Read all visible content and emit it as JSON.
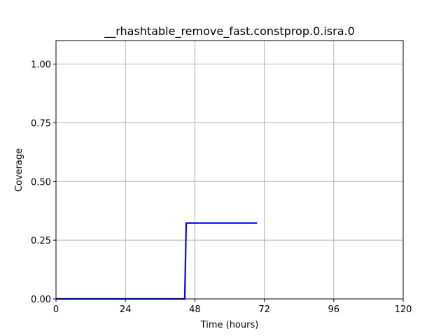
{
  "chart_data": {
    "type": "line",
    "title": "__rhashtable_remove_fast.constprop.0.isra.0",
    "xlabel": "Time (hours)",
    "ylabel": "Coverage",
    "xlim": [
      0,
      120
    ],
    "ylim": [
      0,
      1.1
    ],
    "xticks": [
      0,
      24,
      48,
      72,
      96,
      120
    ],
    "xtick_labels": [
      "0",
      "24",
      "48",
      "72",
      "96",
      "120"
    ],
    "yticks": [
      0,
      0.25,
      0.5,
      0.75,
      1.0
    ],
    "ytick_labels": [
      "0.00",
      "0.25",
      "0.50",
      "0.75",
      "1.00"
    ],
    "grid": true,
    "series": [
      {
        "color": "#0000ff",
        "x": [
          0,
          44.5,
          45.0,
          69.5
        ],
        "y": [
          0.0,
          0.0,
          0.323,
          0.323
        ]
      }
    ]
  }
}
